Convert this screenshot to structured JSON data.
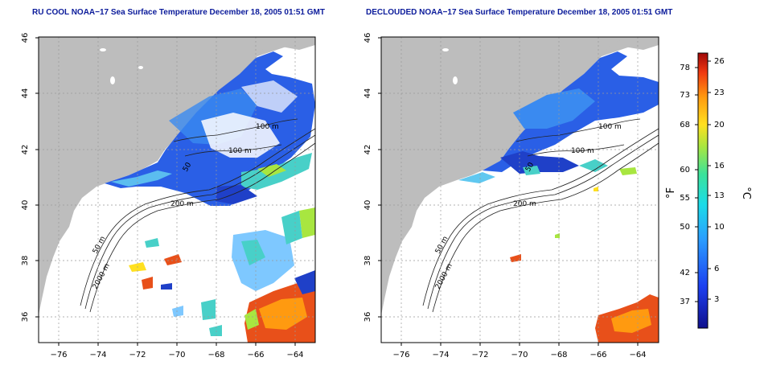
{
  "panels": [
    {
      "title": "RU COOL NOAA−17 Sea Surface Temperature December 18, 2005 01:51 GMT",
      "contour_labels": [
        "100 m",
        "100 m",
        "50",
        "200 m",
        "50 m",
        "2000 m"
      ]
    },
    {
      "title": "DECLOUDED NOAA−17 Sea Surface Temperature December 18, 2005 01:51 GMT",
      "contour_labels": [
        "100 m",
        "100 m",
        "50",
        "200 m",
        "50 m",
        "2000 m"
      ]
    }
  ],
  "axes": {
    "lon_ticks": [
      "−76",
      "−74",
      "−72",
      "−70",
      "−68",
      "−66",
      "−64"
    ],
    "lat_ticks": [
      "46",
      "44",
      "42",
      "40",
      "38",
      "36"
    ]
  },
  "colorbar": {
    "f_label": "°F",
    "c_label": "°C",
    "f_ticks": [
      "78",
      "73",
      "68",
      "60",
      "55",
      "50",
      "42",
      "37"
    ],
    "c_ticks": [
      "26",
      "23",
      "20",
      "16",
      "13",
      "10",
      "6",
      "3"
    ]
  },
  "colors": {
    "land": "#bdbdbd",
    "title": "#0a1a9a",
    "cold": "#1f4fe0",
    "warm": "#e8501a"
  }
}
